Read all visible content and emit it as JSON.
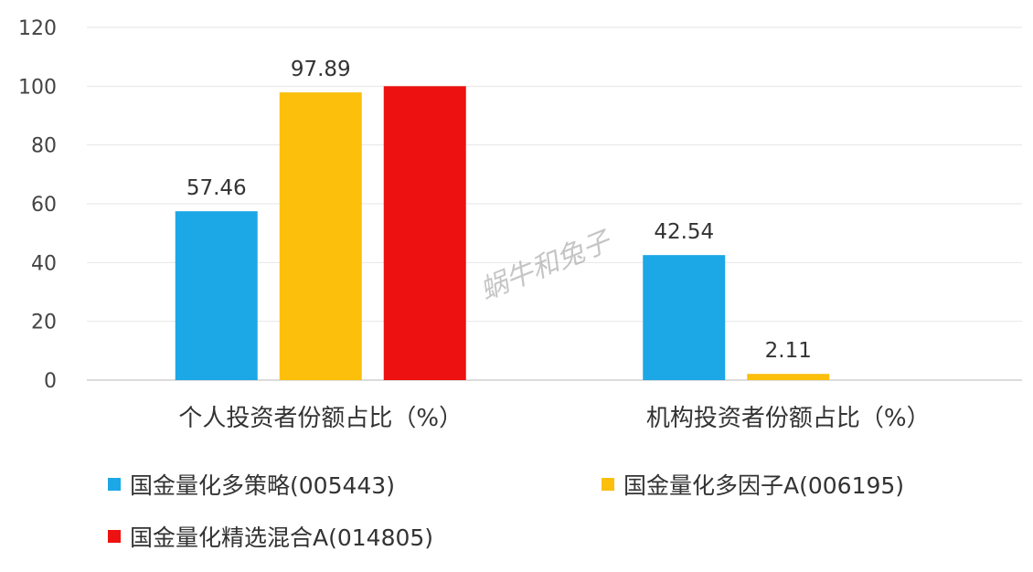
{
  "chart_data": {
    "type": "bar",
    "categories": [
      "个人投资者份额占比（%）",
      "机构投资者份额占比（%）"
    ],
    "series": [
      {
        "name": "国金量化多策略(005443)",
        "color": "#1ca7e6",
        "values": [
          57.46,
          42.54
        ],
        "labels": [
          "57.46",
          "42.54"
        ]
      },
      {
        "name": "国金量化多因子A(006195)",
        "color": "#fbbf0c",
        "values": [
          97.89,
          2.11
        ],
        "labels": [
          "97.89",
          "2.11"
        ]
      },
      {
        "name": "国金量化精选混合A(014805)",
        "color": "#ee1111",
        "values": [
          100,
          0
        ],
        "labels": [
          "",
          ""
        ]
      }
    ],
    "ylim": [
      0,
      120
    ],
    "yticks": [
      "0",
      "20",
      "40",
      "60",
      "80",
      "100",
      "120"
    ],
    "grid": true,
    "legend_position": "bottom"
  },
  "watermark": "蜗牛和兔子"
}
